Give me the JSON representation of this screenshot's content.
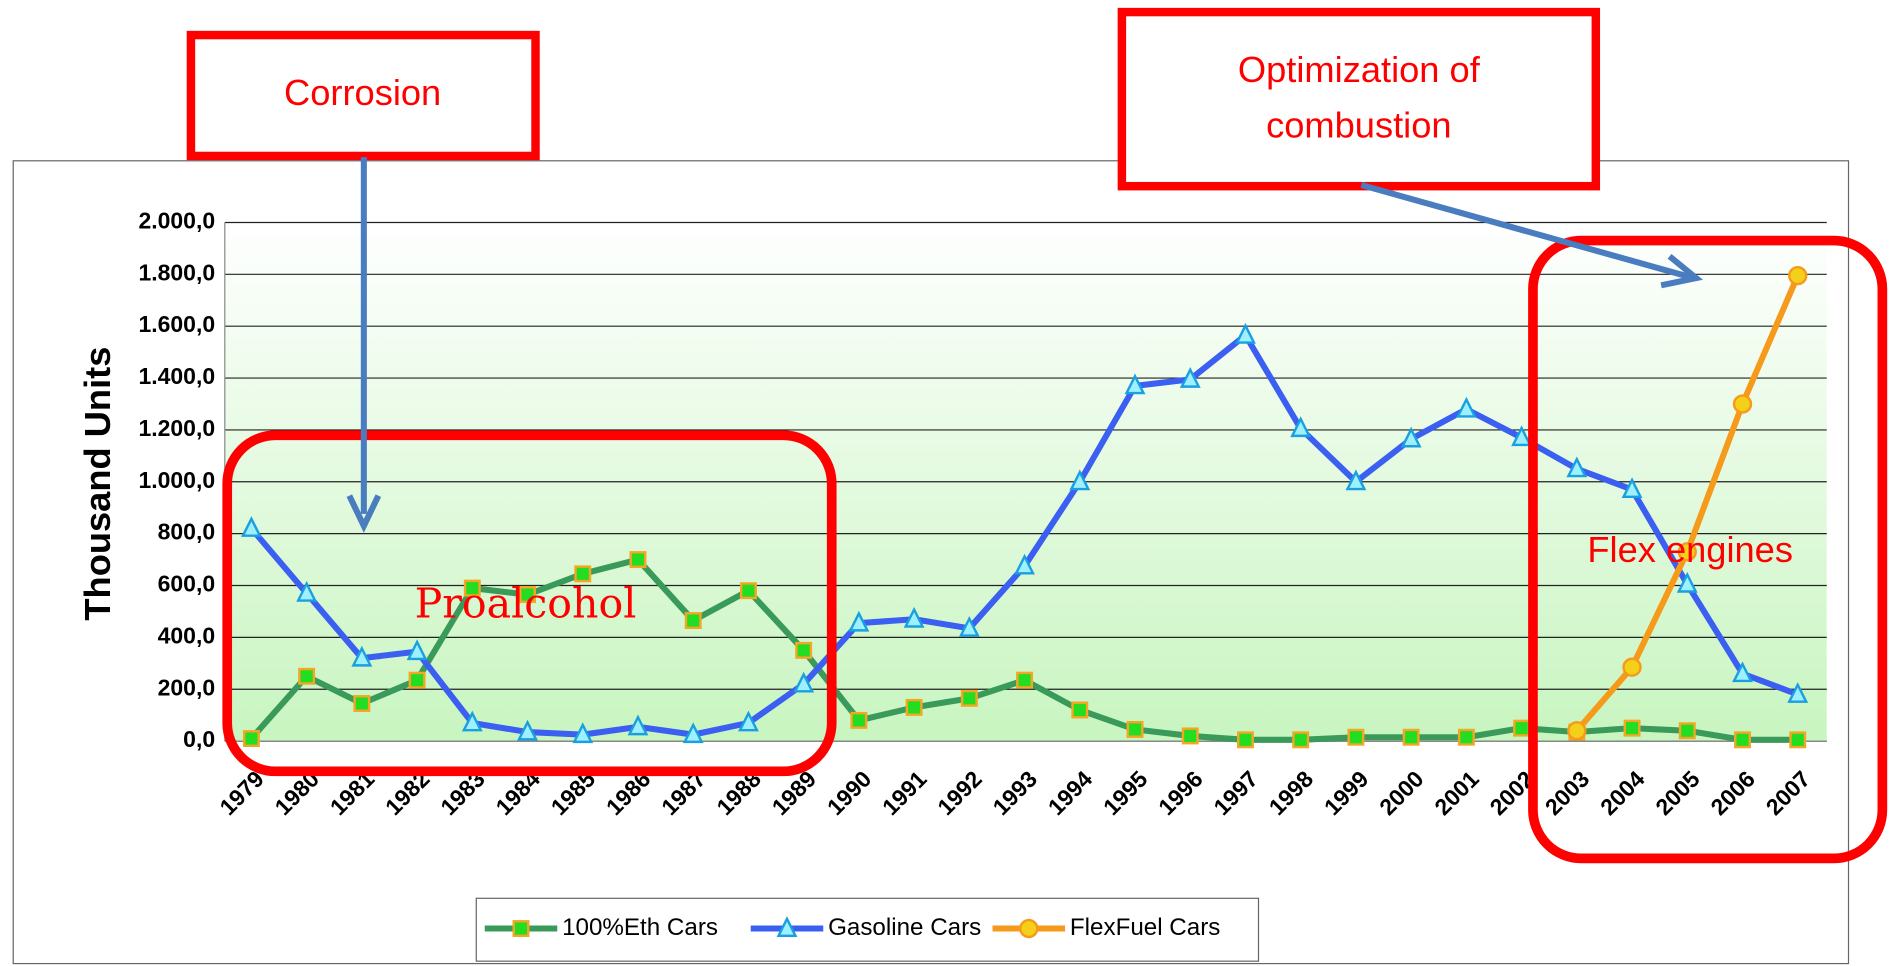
{
  "chart_data": {
    "type": "line",
    "y_label": "Thousand  Units",
    "categories": [
      "1979",
      "1980",
      "1981",
      "1982",
      "1983",
      "1984",
      "1985",
      "1986",
      "1987",
      "1988",
      "1989",
      "1990",
      "1991",
      "1992",
      "1993",
      "1994",
      "1995",
      "1996",
      "1997",
      "1998",
      "1999",
      "2000",
      "2001",
      "2002",
      "2003",
      "2004",
      "2005",
      "2006",
      "2007"
    ],
    "series": [
      {
        "name": "100%Eth Cars",
        "color": "#3a9a5a",
        "marker": "square",
        "values": [
          10,
          250,
          145,
          235,
          590,
          565,
          645,
          700,
          465,
          580,
          350,
          80,
          130,
          165,
          235,
          120,
          45,
          20,
          5,
          5,
          15,
          15,
          15,
          50,
          35,
          50,
          40,
          5,
          5
        ]
      },
      {
        "name": "Gasoline Cars",
        "color": "#3b5ff0",
        "marker": "triangle",
        "values": [
          820,
          570,
          320,
          345,
          70,
          35,
          25,
          55,
          25,
          70,
          220,
          455,
          470,
          435,
          675,
          1000,
          1370,
          1395,
          1565,
          1205,
          1000,
          1165,
          1280,
          1170,
          1050,
          970,
          605,
          260,
          180
        ]
      },
      {
        "name": "FlexFuel Cars",
        "color": "#f59a1a",
        "marker": "circle",
        "values": [
          null,
          null,
          null,
          null,
          null,
          null,
          null,
          null,
          null,
          null,
          null,
          null,
          null,
          null,
          null,
          null,
          null,
          null,
          null,
          null,
          null,
          null,
          null,
          null,
          40,
          285,
          730,
          1300,
          1795
        ]
      }
    ],
    "ylim": [
      0,
      2000
    ],
    "yticks": [
      {
        "value": 0,
        "label": "0,0"
      },
      {
        "value": 200,
        "label": "200,0"
      },
      {
        "value": 400,
        "label": "400,0"
      },
      {
        "value": 600,
        "label": "600,0"
      },
      {
        "value": 800,
        "label": "800,0"
      },
      {
        "value": 1000,
        "label": "1.000,0"
      },
      {
        "value": 1200,
        "label": "1.200,0"
      },
      {
        "value": 1400,
        "label": "1.400,0"
      },
      {
        "value": 1600,
        "label": "1.600,0"
      },
      {
        "value": 1800,
        "label": "1.800,0"
      },
      {
        "value": 2000,
        "label": "2.000,0"
      }
    ],
    "grid": true,
    "legend": "bottom",
    "annotations": {
      "corrosion": "Corrosion",
      "optimization": [
        "Optimization of",
        "combustion"
      ],
      "proalcohol": "Proalcohol",
      "flex": "Flex engines"
    }
  }
}
